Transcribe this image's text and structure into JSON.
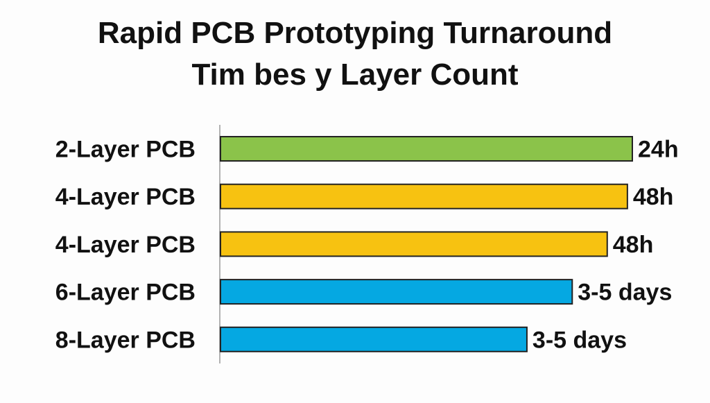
{
  "chart_data": {
    "type": "bar",
    "orientation": "horizontal",
    "title_lines": [
      "Rapid PCB Prototyping Turnaround",
      "Tim bes y Layer Count"
    ],
    "categories": [
      "2-Layer PCB",
      "4-Layer PCB",
      "4-Layer PCB",
      "6-Layer PCB",
      "8-Layer PCB"
    ],
    "values": [
      100,
      98.8,
      93.9,
      85.4,
      74.4
    ],
    "value_note": "relative bar length, longest bar = 100 (no axis printed)",
    "data_labels": [
      "24h",
      "48h",
      "48h",
      "3-5 days",
      "3-5 days"
    ],
    "colors": [
      "#8bc34a",
      "#f7c211",
      "#f7c211",
      "#05a8e2",
      "#05a8e2"
    ],
    "grid": false,
    "legend": "none"
  }
}
